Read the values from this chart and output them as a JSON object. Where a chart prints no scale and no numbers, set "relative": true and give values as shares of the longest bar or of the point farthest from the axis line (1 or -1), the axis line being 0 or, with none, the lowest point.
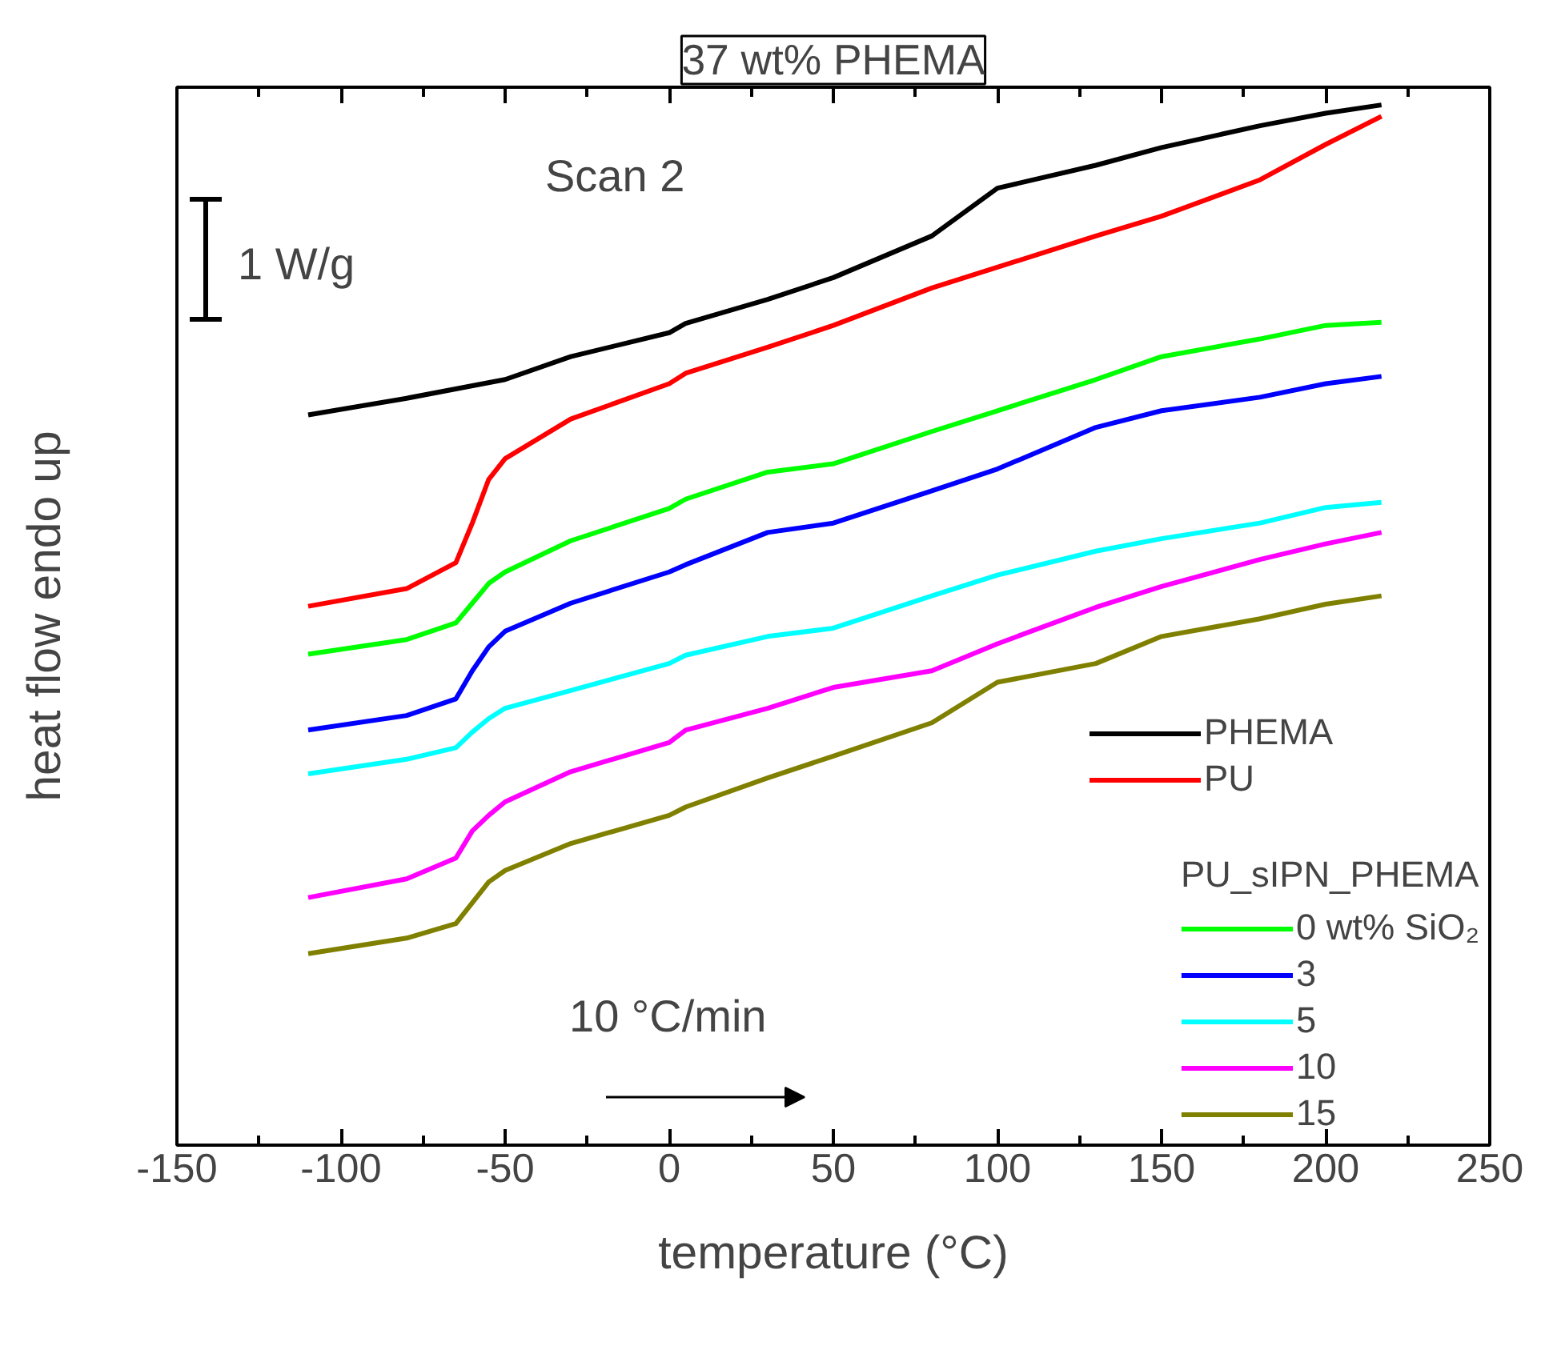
{
  "chart_data": {
    "type": "line",
    "title": "37 wt% PHEMA",
    "xlabel": "temperature (°C)",
    "ylabel": "heat flow endo up",
    "relative": true,
    "legend_title": "PU_sIPN_PHEMA",
    "annotations": [
      "Scan 2",
      "1 W/g",
      "10 °C/min"
    ],
    "xlim": [
      -150,
      250
    ],
    "xticks": [
      -150,
      {
        "value": -125,
        "label": null
      },
      -100,
      {
        "value": -75,
        "label": null
      },
      -50,
      {
        "value": -25,
        "label": null
      },
      0,
      {
        "value": 25,
        "label": null
      },
      50,
      {
        "value": 75,
        "label": null
      },
      100,
      {
        "value": 125,
        "label": null
      },
      150,
      {
        "value": 175,
        "label": null
      },
      200,
      {
        "value": 225,
        "label": null
      },
      250
    ],
    "x": [
      -110,
      -80,
      -65,
      -60,
      -55,
      -50,
      -30,
      0,
      5,
      30,
      50,
      80,
      100,
      130,
      150,
      180,
      200,
      217
    ],
    "legend": "bottom right",
    "grid": false,
    "line_style": "solid",
    "marker": "none",
    "series": [
      {
        "name": "PHEMA",
        "color": "#000000",
        "x": [
          -110,
          -80,
          -50,
          -30,
          0,
          5,
          30,
          50,
          80,
          100,
          130,
          150,
          180,
          200,
          217
        ],
        "values": [
          0.702,
          0.718,
          0.736,
          0.758,
          0.781,
          0.79,
          0.813,
          0.834,
          0.874,
          0.92,
          0.942,
          0.959,
          0.98,
          0.992,
          1.0
        ]
      },
      {
        "name": "PU",
        "color": "#ff0000",
        "values": [
          0.518,
          0.535,
          0.56,
          0.598,
          0.64,
          0.66,
          0.698,
          0.732,
          0.742,
          0.767,
          0.788,
          0.824,
          0.844,
          0.874,
          0.893,
          0.928,
          0.962,
          0.989
        ]
      },
      {
        "name": "0 wt% SiO₂",
        "color": "#00ff00",
        "values": [
          0.472,
          0.486,
          0.502,
          0.521,
          0.54,
          0.551,
          0.581,
          0.612,
          0.621,
          0.647,
          0.655,
          0.686,
          0.706,
          0.736,
          0.758,
          0.775,
          0.788,
          0.791
        ]
      },
      {
        "name": "3",
        "color": "#0000ff",
        "values": [
          0.399,
          0.413,
          0.429,
          0.456,
          0.479,
          0.494,
          0.521,
          0.551,
          0.558,
          0.589,
          0.598,
          0.629,
          0.65,
          0.69,
          0.706,
          0.719,
          0.732,
          0.739
        ]
      },
      {
        "name": "5",
        "color": "#00ffff",
        "values": [
          0.357,
          0.371,
          0.382,
          0.397,
          0.41,
          0.42,
          0.437,
          0.463,
          0.471,
          0.489,
          0.497,
          0.528,
          0.548,
          0.571,
          0.583,
          0.598,
          0.613,
          0.618
        ]
      },
      {
        "name": "10",
        "color": "#ff00ff",
        "values": [
          0.238,
          0.256,
          0.276,
          0.302,
          0.317,
          0.33,
          0.359,
          0.387,
          0.399,
          0.42,
          0.44,
          0.456,
          0.482,
          0.517,
          0.537,
          0.563,
          0.578,
          0.589
        ]
      },
      {
        "name": "15",
        "color": "#808000",
        "values": [
          0.184,
          0.199,
          0.213,
          0.233,
          0.253,
          0.264,
          0.29,
          0.317,
          0.325,
          0.353,
          0.374,
          0.406,
          0.445,
          0.463,
          0.489,
          0.506,
          0.52,
          0.528
        ]
      }
    ]
  }
}
